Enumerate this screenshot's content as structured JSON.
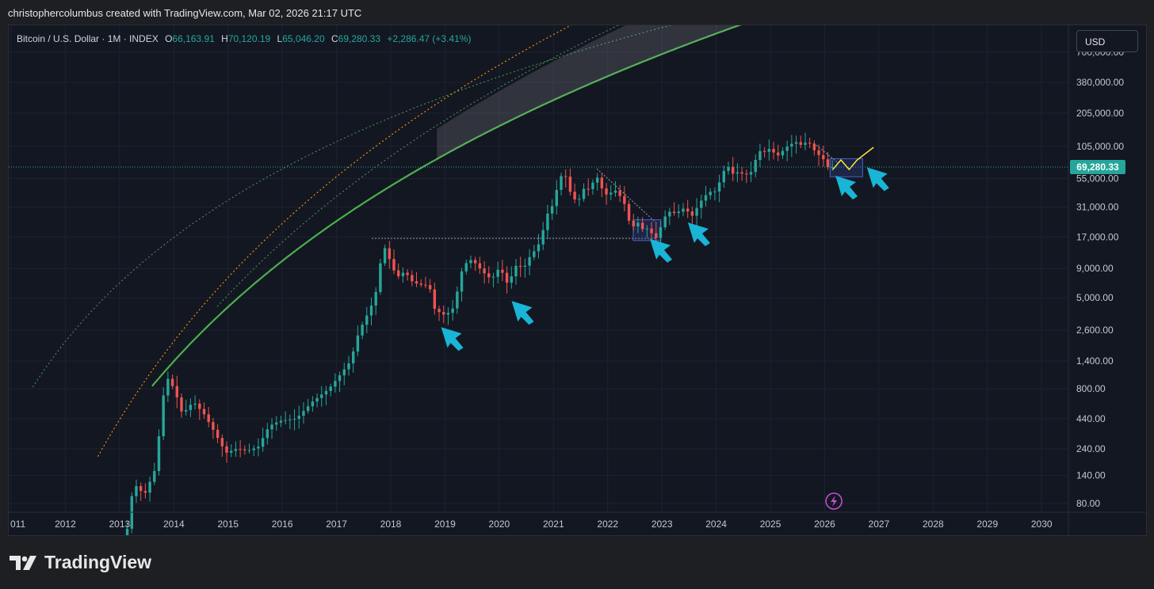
{
  "attribution": "christophercolumbus created with TradingView.com, Mar 02, 2026 21:17 UTC",
  "legend": {
    "symbol": "Bitcoin / U.S. Dollar · 1M · INDEX",
    "open_label": "O",
    "open": "66,163.91",
    "high_label": "H",
    "high": "70,120.19",
    "low_label": "L",
    "low": "65,046.20",
    "close_label": "C",
    "close": "69,280.33",
    "change": "+2,286.47 (+3.41%)"
  },
  "currency": "USD",
  "brand": {
    "name": "TradingView",
    "logo_icon": "tradingview-logo-icon"
  },
  "colors": {
    "up": "#26a69a",
    "down": "#ef5350",
    "support": "#4caf50",
    "orange_band": "#ff9800",
    "arrow": "#19b4d6",
    "price_label": "#26a69a",
    "forecast": "#ffeb3b"
  },
  "chart_data": {
    "type": "candlestick",
    "y_scale": "log",
    "ylim": [
      70,
      800000
    ],
    "x_range": [
      2011.0,
      2030.45
    ],
    "y_ticks": [
      "700,000.00",
      "380,000.00",
      "205,000.00",
      "105,000.00",
      "55,000.00",
      "31,000.00",
      "17,000.00",
      "9,000.00",
      "5,000.00",
      "2,600.00",
      "1,400.00",
      "800.00",
      "440.00",
      "240.00",
      "140.00",
      "80.00"
    ],
    "x_ticks": [
      "011",
      "2012",
      "2013",
      "2014",
      "2015",
      "2016",
      "2017",
      "2018",
      "2019",
      "2020",
      "2021",
      "2022",
      "2023",
      "2024",
      "2025",
      "2026",
      "2027",
      "2028",
      "2029",
      "2030"
    ],
    "last_price": 69280.33,
    "last_price_label": "69,280.33",
    "price_path": [
      [
        2013.1,
        25
      ],
      [
        2013.3,
        120
      ],
      [
        2013.5,
        95
      ],
      [
        2013.7,
        160
      ],
      [
        2013.85,
        700
      ],
      [
        2013.92,
        1000
      ],
      [
        2014.05,
        800
      ],
      [
        2014.2,
        480
      ],
      [
        2014.4,
        620
      ],
      [
        2014.6,
        480
      ],
      [
        2014.8,
        330
      ],
      [
        2015.0,
        220
      ],
      [
        2015.2,
        240
      ],
      [
        2015.4,
        230
      ],
      [
        2015.6,
        250
      ],
      [
        2015.8,
        380
      ],
      [
        2016.0,
        420
      ],
      [
        2016.3,
        440
      ],
      [
        2016.6,
        620
      ],
      [
        2016.9,
        800
      ],
      [
        2017.1,
        1050
      ],
      [
        2017.3,
        1400
      ],
      [
        2017.45,
        2500
      ],
      [
        2017.6,
        3500
      ],
      [
        2017.75,
        5000
      ],
      [
        2017.85,
        10000
      ],
      [
        2017.92,
        14000
      ],
      [
        2018.05,
        10000
      ],
      [
        2018.15,
        7500
      ],
      [
        2018.3,
        8500
      ],
      [
        2018.45,
        6800
      ],
      [
        2018.6,
        6500
      ],
      [
        2018.75,
        6400
      ],
      [
        2018.85,
        4000
      ],
      [
        2018.95,
        3700
      ],
      [
        2019.05,
        3500
      ],
      [
        2019.2,
        4100
      ],
      [
        2019.35,
        8500
      ],
      [
        2019.48,
        11000
      ],
      [
        2019.6,
        10000
      ],
      [
        2019.75,
        8300
      ],
      [
        2019.9,
        7200
      ],
      [
        2020.05,
        9300
      ],
      [
        2020.2,
        6500
      ],
      [
        2020.35,
        9500
      ],
      [
        2020.5,
        9200
      ],
      [
        2020.62,
        11800
      ],
      [
        2020.75,
        13800
      ],
      [
        2020.85,
        19500
      ],
      [
        2020.95,
        29000
      ],
      [
        2021.05,
        33000
      ],
      [
        2021.15,
        58000
      ],
      [
        2021.28,
        57000
      ],
      [
        2021.38,
        37000
      ],
      [
        2021.5,
        35000
      ],
      [
        2021.62,
        47000
      ],
      [
        2021.72,
        43000
      ],
      [
        2021.82,
        61000
      ],
      [
        2021.92,
        46000
      ],
      [
        2022.05,
        38000
      ],
      [
        2022.15,
        45000
      ],
      [
        2022.28,
        38000
      ],
      [
        2022.38,
        31000
      ],
      [
        2022.47,
        19500
      ],
      [
        2022.58,
        23300
      ],
      [
        2022.7,
        19400
      ],
      [
        2022.8,
        20500
      ],
      [
        2022.88,
        17100
      ],
      [
        2022.95,
        16500
      ],
      [
        2023.05,
        23100
      ],
      [
        2023.15,
        28500
      ],
      [
        2023.3,
        27200
      ],
      [
        2023.45,
        30400
      ],
      [
        2023.6,
        26000
      ],
      [
        2023.75,
        34500
      ],
      [
        2023.9,
        42000
      ],
      [
        2024.05,
        42500
      ],
      [
        2024.15,
        61000
      ],
      [
        2024.25,
        71000
      ],
      [
        2024.35,
        60700
      ],
      [
        2024.45,
        62700
      ],
      [
        2024.58,
        58900
      ],
      [
        2024.7,
        63300
      ],
      [
        2024.82,
        96400
      ],
      [
        2024.92,
        93400
      ],
      [
        2025.05,
        102000
      ],
      [
        2025.15,
        84400
      ],
      [
        2025.25,
        94200
      ],
      [
        2025.35,
        104600
      ],
      [
        2025.5,
        115700
      ],
      [
        2025.6,
        108300
      ],
      [
        2025.7,
        114000
      ],
      [
        2025.8,
        109500
      ],
      [
        2025.88,
        90400
      ],
      [
        2025.95,
        87500
      ],
      [
        2026.05,
        78000
      ],
      [
        2026.12,
        66000
      ],
      [
        2026.17,
        69280
      ]
    ],
    "forecast_path": [
      [
        2026.15,
        66000
      ],
      [
        2026.3,
        80000
      ],
      [
        2026.45,
        66000
      ],
      [
        2026.6,
        80000
      ],
      [
        2026.9,
        103000
      ]
    ]
  }
}
